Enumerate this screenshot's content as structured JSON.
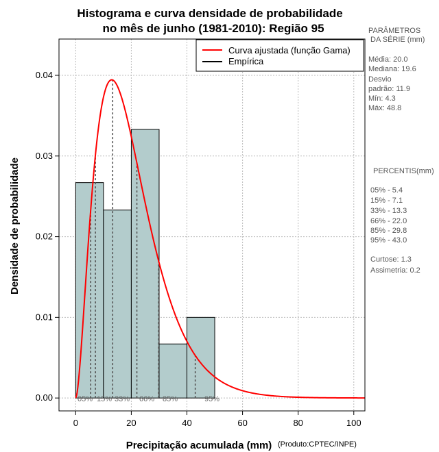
{
  "chart_data": {
    "type": "bar",
    "title_lines": [
      "Histograma e curva densidade de probabilidade",
      "no mês de junho (1981-2010): Região 95"
    ],
    "xlabel": "Precipitação acumulada (mm)",
    "ylabel": "Densidade de probabilidade",
    "credit": "(Produto:CPTEC/INPE)",
    "xlim": [
      -6,
      104
    ],
    "ylim": [
      -0.0016,
      0.0445
    ],
    "x_ticks": [
      0,
      20,
      40,
      60,
      80,
      100
    ],
    "x_tick_labels": [
      "0",
      "20",
      "40",
      "60",
      "80",
      "100"
    ],
    "y_ticks": [
      0.0,
      0.01,
      0.02,
      0.03,
      0.04
    ],
    "y_tick_labels": [
      "0.00",
      "0.01",
      "0.02",
      "0.03",
      "0.04"
    ],
    "grid": true,
    "legend_position": "top-right",
    "legend": [
      {
        "label": "Curva ajustada (função Gama)",
        "color": "#ff0000"
      },
      {
        "label": "Empírica",
        "color": "#000000"
      }
    ],
    "histogram": {
      "bin_edges": [
        0,
        10,
        20,
        30,
        40,
        50
      ],
      "density": [
        0.0267,
        0.0233,
        0.0333,
        0.0067,
        0.01
      ],
      "fill_color": "#b3cccc",
      "edge_color": "#000000"
    },
    "gamma_fit": {
      "shape": 2.8,
      "scale": 7.2,
      "x_range": [
        0,
        104
      ],
      "color": "#ff0000"
    },
    "percentile_markers": [
      {
        "label": "05%",
        "x": 5.4
      },
      {
        "label": "15%",
        "x": 7.1
      },
      {
        "label": "33%",
        "x": 13.3
      },
      {
        "label": "66%",
        "x": 22.0
      },
      {
        "label": "85%",
        "x": 29.8
      },
      {
        "label": "95%",
        "x": 43.0
      }
    ],
    "percentile_label_text": [
      "05%",
      "15%",
      "33%",
      "66%",
      "85%",
      "95%"
    ]
  },
  "series_panel": {
    "heading_line1": "PARÂMETROS",
    "heading_line2": "DA SÉRIE (mm)",
    "lines": [
      "Média:  20.0",
      "Mediana:  19.6",
      "Desvio",
      "padrão:  11.9",
      "Mín:  4.3",
      "Máx:  48.8"
    ]
  },
  "percentile_panel": {
    "heading": "PERCENTIS(mm)",
    "lines": [
      "05% -   5.4",
      "15% -   7.1",
      "33% -   13.3",
      "66% -   22.0",
      "85% -   29.8",
      "95% -   43.0"
    ],
    "extra_lines": [
      "Curtose:  1.3",
      "Assimetria:  0.2"
    ]
  }
}
